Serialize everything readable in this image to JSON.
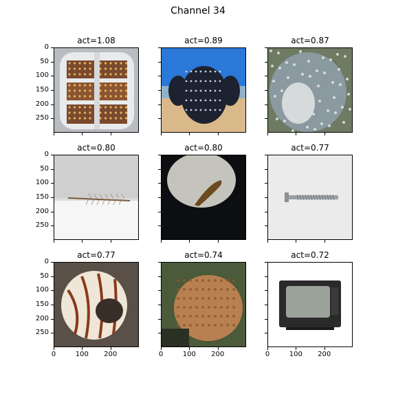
{
  "title": "Channel 34",
  "chart_data": {
    "type": "image_grid",
    "title": "Channel 34",
    "panels": [
      {
        "label": "act=1.08",
        "subject": "cylindrical lamp"
      },
      {
        "label": "act=0.89",
        "subject": "turtle statue"
      },
      {
        "label": "act=0.87",
        "subject": "spotted shell"
      },
      {
        "label": "act=0.80",
        "subject": "centipede on white"
      },
      {
        "label": "act=0.80",
        "subject": "slug"
      },
      {
        "label": "act=0.77",
        "subject": "screw"
      },
      {
        "label": "act=0.77",
        "subject": "nautilus shell"
      },
      {
        "label": "act=0.74",
        "subject": "brain coral"
      },
      {
        "label": "act=0.72",
        "subject": "television"
      }
    ],
    "y_ticks": [
      "0",
      "50",
      "100",
      "150",
      "200",
      "250"
    ],
    "x_ticks": [
      "0",
      "100",
      "200"
    ]
  }
}
